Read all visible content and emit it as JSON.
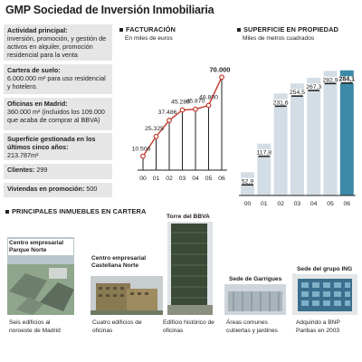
{
  "title": "GMP Sociedad de Inversión Inmobiliaria",
  "info": [
    {
      "label": "Actividad principal:",
      "text": "inversión, promoción, y gestión de activos en alquiler, promoción residencial para la venta"
    },
    {
      "label": "Cartera de suelo:",
      "text": "6.000.000 m² para uso residencial y hotelero."
    },
    {
      "label": "Oficinas en Madrid:",
      "text": "360.000 m² (incluidos los 109.000 que acaba de comprar al BBVA)"
    },
    {
      "label": "Superficie gestionada en los últimos cinco años:",
      "text": "213.787m²"
    },
    {
      "label": "Clientes:",
      "text": "299"
    },
    {
      "label": "Viviendas en promoción:",
      "text": "500"
    }
  ],
  "chart_data": [
    {
      "type": "line",
      "title": "FACTURACIÓN",
      "subtitle": "En miles de euros",
      "categories": [
        "00",
        "01",
        "02",
        "03",
        "04",
        "05",
        "06"
      ],
      "values": [
        10506,
        25325,
        37486,
        45288,
        45870,
        48800,
        70000
      ],
      "labels": [
        "10.506",
        "25.325",
        "37.486",
        "45.288",
        "45.870",
        "48.800",
        "70.000"
      ],
      "ylim": [
        0,
        75000
      ],
      "color": "#c0392b"
    },
    {
      "type": "bar",
      "title": "SUPERFICIE EN PROPIEDAD",
      "subtitle": "Miles de metros cuadrados",
      "categories": [
        "00",
        "01",
        "02",
        "03",
        "04",
        "05",
        "06"
      ],
      "values": [
        52.9,
        117.8,
        231.6,
        254.5,
        267.3,
        282.9,
        284.1
      ],
      "labels": [
        "52,9",
        "117,8",
        "231,6",
        "254,5",
        "267,3",
        "282,9",
        "284,1"
      ],
      "ylim": [
        0,
        300
      ],
      "bar_color": "#d3dde6",
      "highlight_color": "#3d8aa8"
    }
  ],
  "buildings_header": "PRINCIPALES INMUEBLES EN CARTERA",
  "buildings": [
    {
      "name": "Centro empresarial Parque Norte",
      "caption": "Seis edificios al noroeste de Madrid"
    },
    {
      "name": "Centro empresarial Castellana Norte",
      "caption": "Cuatro edificios de oficinas"
    },
    {
      "name": "Torre del BBVA",
      "caption": "Edificio histórico de oficinas"
    },
    {
      "name": "Sede de Garrigues",
      "caption": "Áreas comunes cubiertas y jardines"
    },
    {
      "name": "Sede del grupo ING",
      "caption": "Adquirido a BNP Paribas en 2003"
    }
  ]
}
